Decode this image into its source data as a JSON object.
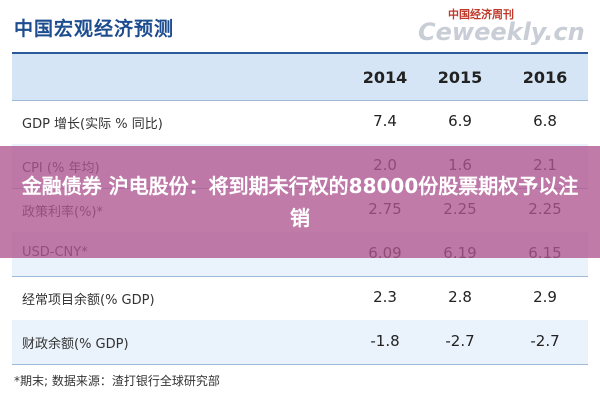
{
  "header": {
    "title": "中国宏观经济预测",
    "logo_top": "中国经济周刊",
    "logo": "Ceweekly.cn"
  },
  "table": {
    "columns": [
      "2014",
      "2015",
      "2016"
    ],
    "rows": [
      [
        "GDP 增长(实际 % 同比)",
        "7.4",
        "6.9",
        "6.8"
      ],
      [
        "CPI (% 年均)",
        "2.0",
        "1.6",
        "2.1"
      ],
      [
        "政策利率(%)*",
        "2.75",
        "2.25",
        "2.25"
      ],
      [
        "USD-CNY*",
        "6.09",
        "6.19",
        "6.15"
      ],
      [
        "经常项目余额(% GDP)",
        "2.3",
        "2.8",
        "2.9"
      ],
      [
        "财政余额(% GDP)",
        "-1.8",
        "-2.7",
        "-2.7"
      ]
    ]
  },
  "footer": {
    "note": "*期末;    数据来源：渣打银行全球研究部"
  },
  "banner": {
    "text": "金融债券 沪电股份：将到期未行权的88000份股票期权予以注销"
  }
}
